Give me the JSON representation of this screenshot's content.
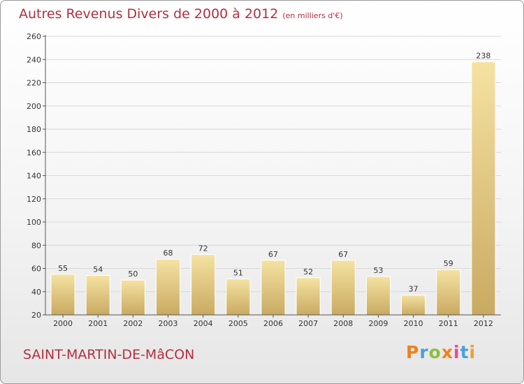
{
  "header": {
    "title": "Autres Revenus Divers de 2000 à 2012",
    "unit": "(en milliers d'€)"
  },
  "footer": {
    "town": "SAINT-MARTIN-DE-MâCON",
    "logo_text": "Proxiti"
  },
  "colors": {
    "title": "#b03040",
    "bar_light": "#f5e2a2",
    "bar_dark": "#c9aa62",
    "grid": "#d8d8d8",
    "axis": "#555555",
    "logo_letters": [
      "#f0801e",
      "#4aa0dc",
      "#8cc03c",
      "#f0801e",
      "#e84a9c",
      "#4aa0dc",
      "#f0a020"
    ]
  },
  "chart_data": {
    "type": "bar",
    "title": "Autres Revenus Divers de 2000 à 2012",
    "ylabel": "",
    "xlabel": "",
    "categories": [
      "2000",
      "2001",
      "2002",
      "2003",
      "2004",
      "2005",
      "2006",
      "2007",
      "2008",
      "2009",
      "2010",
      "2011",
      "2012"
    ],
    "values": [
      55,
      54,
      50,
      68,
      72,
      51,
      67,
      52,
      67,
      53,
      37,
      59,
      238
    ],
    "ylim": [
      20,
      260
    ],
    "yticks": [
      20,
      40,
      60,
      80,
      100,
      120,
      140,
      160,
      180,
      200,
      220,
      240,
      260
    ],
    "grid": true,
    "data_labels": true
  }
}
